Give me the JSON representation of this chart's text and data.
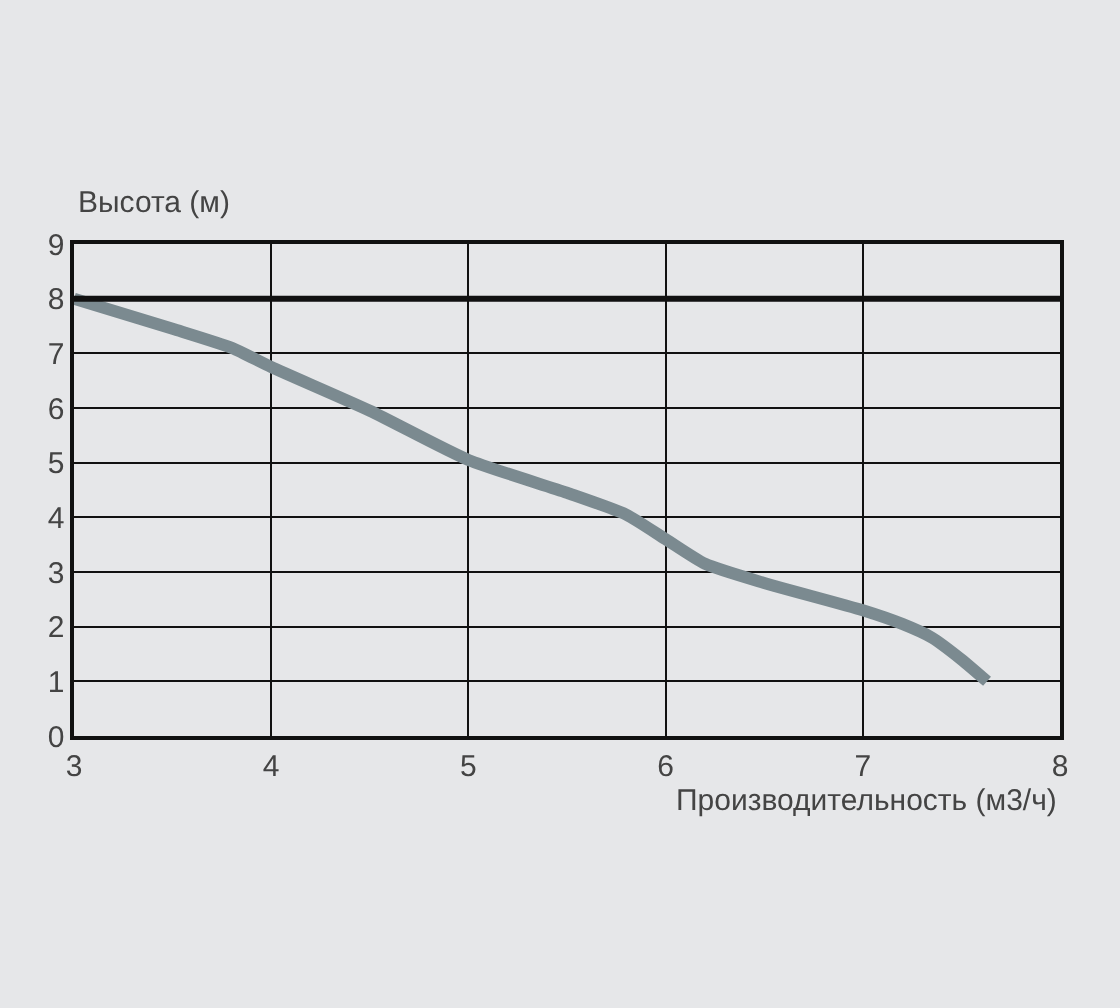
{
  "chart_data": {
    "type": "line",
    "xlabel": "Производительность (м3/ч)",
    "ylabel": "Высота (м)",
    "x": [
      3,
      3.5,
      3.8,
      4,
      4.5,
      5,
      5.5,
      5.8,
      6,
      6.2,
      6.5,
      7,
      7.2,
      7.35,
      7.5,
      7.63
    ],
    "series": [
      {
        "color": "#7b8a90",
        "values": [
          8,
          7.45,
          7.1,
          6.75,
          5.95,
          5.05,
          4.45,
          4.05,
          3.6,
          3.15,
          2.8,
          2.3,
          2.05,
          1.8,
          1.4,
          1.0
        ]
      }
    ],
    "xlim": [
      3,
      8
    ],
    "xticks": [
      3,
      4,
      5,
      6,
      7,
      8
    ],
    "ylim": [
      0,
      9
    ],
    "yticks": [
      0,
      1,
      2,
      3,
      4,
      5,
      6,
      7,
      8,
      9
    ],
    "ref_lines": [
      {
        "axis": "y",
        "value": 8,
        "color": "#111111"
      }
    ],
    "grid": true,
    "marker": "none",
    "line_style": "solid"
  }
}
